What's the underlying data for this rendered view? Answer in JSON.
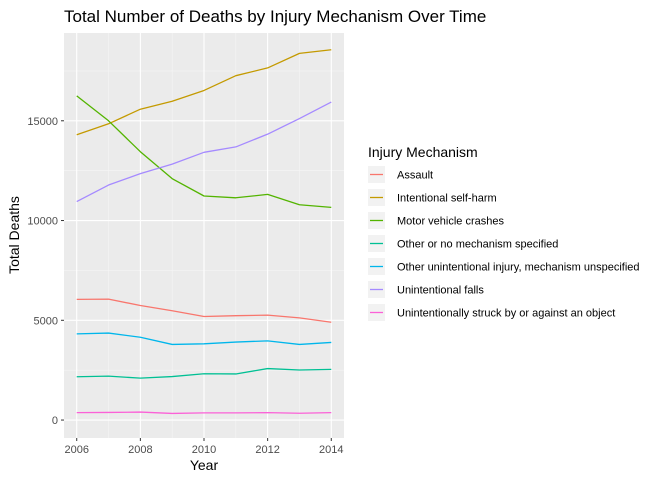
{
  "chart_data": {
    "type": "line",
    "title": "Total Number of Deaths by Injury Mechanism Over Time",
    "xlabel": "Year",
    "ylabel": "Total Deaths",
    "x": [
      2006,
      2007,
      2008,
      2009,
      2010,
      2011,
      2012,
      2013,
      2014
    ],
    "xlim": [
      2005.6,
      2014.4
    ],
    "ylim": [
      -900,
      19400
    ],
    "x_ticks": [
      2006,
      2008,
      2010,
      2012,
      2014
    ],
    "y_ticks": [
      0,
      5000,
      10000,
      15000
    ],
    "grid": true,
    "legend": {
      "title": "Injury Mechanism",
      "position": "right"
    },
    "series": [
      {
        "name": "Assault",
        "color": "#F8766D",
        "values": [
          6050,
          6060,
          5740,
          5480,
          5190,
          5230,
          5260,
          5120,
          4900
        ]
      },
      {
        "name": "Intentional self-harm",
        "color": "#C49A00",
        "values": [
          14300,
          14850,
          15580,
          15980,
          16520,
          17260,
          17650,
          18380,
          18560
        ]
      },
      {
        "name": "Motor vehicle crashes",
        "color": "#53B400",
        "values": [
          16250,
          15000,
          13450,
          12100,
          11230,
          11140,
          11310,
          10790,
          10660
        ]
      },
      {
        "name": "Other or no mechanism specified",
        "color": "#00C094",
        "values": [
          2170,
          2200,
          2100,
          2180,
          2320,
          2310,
          2580,
          2510,
          2540
        ]
      },
      {
        "name": "Other unintentional injury, mechanism unspecified",
        "color": "#00B6EB",
        "values": [
          4320,
          4360,
          4150,
          3790,
          3820,
          3910,
          3970,
          3790,
          3890
        ]
      },
      {
        "name": "Unintentional falls",
        "color": "#A58AFF",
        "values": [
          10950,
          11780,
          12350,
          12830,
          13420,
          13690,
          14330,
          15110,
          15940
        ]
      },
      {
        "name": "Unintentionally struck by or against an object",
        "color": "#FB61D7",
        "values": [
          370,
          380,
          400,
          330,
          360,
          360,
          370,
          340,
          370
        ]
      }
    ]
  }
}
